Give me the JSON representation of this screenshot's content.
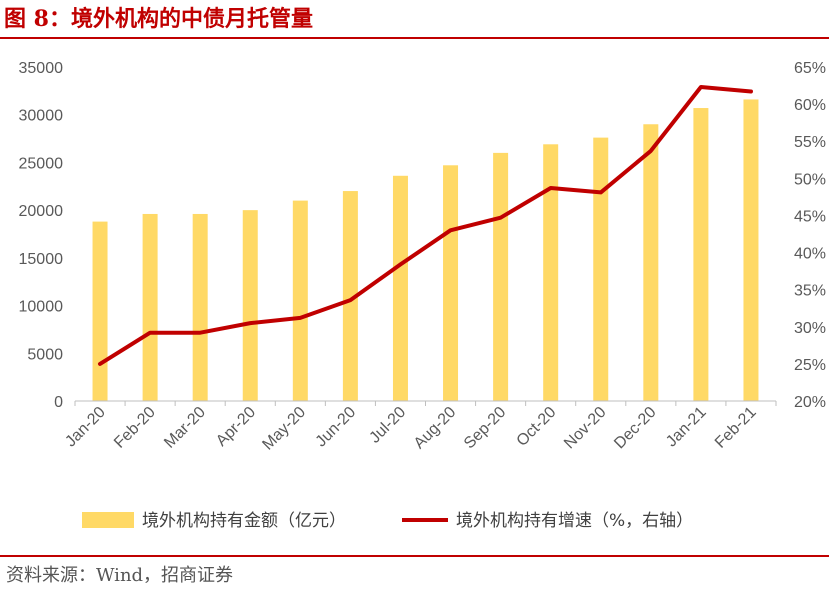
{
  "title": "图 8：境外机构的中债月托管量",
  "source": "资料来源：Wind，招商证券",
  "colors": {
    "bar": "#FFD966",
    "line": "#C00000",
    "accent": "#C00000"
  },
  "chart_data": {
    "type": "bar+line",
    "categories": [
      "Jan-20",
      "Feb-20",
      "Mar-20",
      "Apr-20",
      "May-20",
      "Jun-20",
      "Jul-20",
      "Aug-20",
      "Sep-20",
      "Oct-20",
      "Nov-20",
      "Dec-20",
      "Jan-21",
      "Feb-21"
    ],
    "series": [
      {
        "name": "境外机构持有金额（亿元）",
        "type": "bar",
        "axis": "left",
        "values": [
          18800,
          19600,
          19600,
          20000,
          21000,
          22000,
          23600,
          24700,
          26000,
          26900,
          27600,
          29000,
          30700,
          31600
        ]
      },
      {
        "name": "境外机构持有增速（%，右轴）",
        "type": "line",
        "axis": "right",
        "values": [
          25.0,
          29.2,
          29.2,
          30.5,
          31.2,
          33.6,
          38.4,
          43.0,
          44.7,
          48.7,
          48.1,
          53.7,
          62.3,
          61.7
        ]
      }
    ],
    "y_left": {
      "min": 0,
      "max": 35000,
      "ticks": [
        "0",
        "5000",
        "10000",
        "15000",
        "20000",
        "25000",
        "30000",
        "35000"
      ]
    },
    "y_right": {
      "min": 20,
      "max": 65,
      "ticks": [
        "20%",
        "25%",
        "30%",
        "35%",
        "40%",
        "45%",
        "50%",
        "55%",
        "60%",
        "65%"
      ]
    },
    "grid": false,
    "legend_position": "bottom"
  }
}
